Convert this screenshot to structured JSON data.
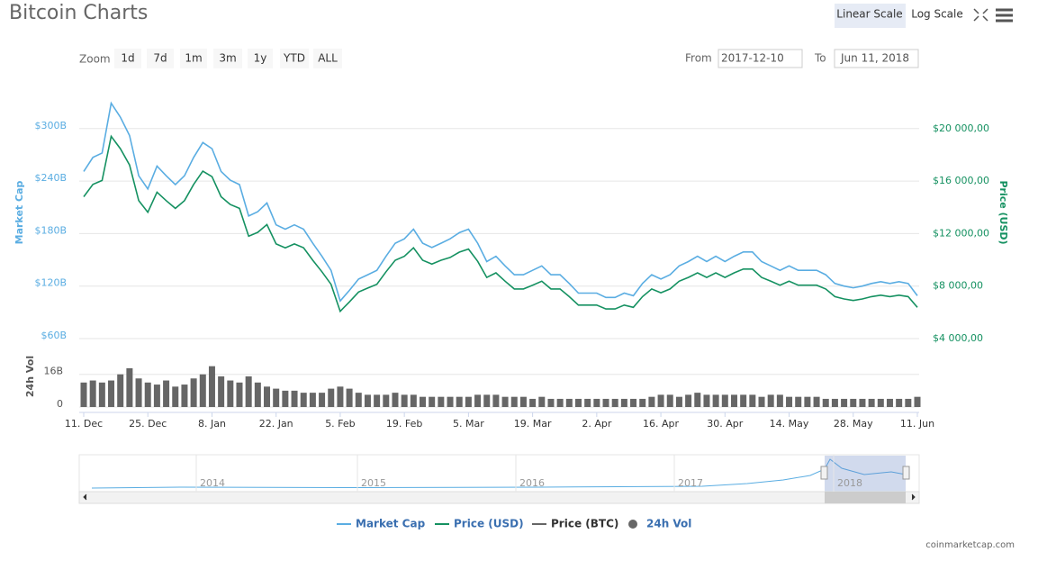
{
  "ui": {
    "title": "Bitcoin Charts",
    "scale_buttons": [
      "Linear Scale",
      "Log Scale"
    ],
    "zoom_label": "Zoom",
    "zoom_buttons": [
      "1d",
      "7d",
      "1m",
      "3m",
      "1y",
      "YTD",
      "ALL"
    ],
    "from_label": "From",
    "from_value": "2017-12-10",
    "to_label": "To",
    "to_value": "Jun 11, 2018",
    "navigator_years": [
      "2014",
      "2015",
      "2016",
      "2017",
      "2018"
    ],
    "legend": [
      {
        "name": "Market Cap",
        "color": "#5aade2"
      },
      {
        "name": "Price (USD)",
        "color": "#159161"
      },
      {
        "name": "Price (BTC)",
        "color": "#666666"
      },
      {
        "name": "24h Vol",
        "color": "#666666"
      }
    ],
    "credit": "coinmarketcap.com"
  },
  "chart_data": [
    {
      "type": "line",
      "ylabel": "Market Cap",
      "y2label": "Price (USD)",
      "categories": [
        "11. Dec",
        null,
        null,
        null,
        null,
        null,
        null,
        "25. Dec",
        null,
        null,
        null,
        null,
        null,
        null,
        "8. Jan",
        null,
        null,
        null,
        null,
        null,
        null,
        "22. Jan",
        null,
        null,
        null,
        null,
        null,
        null,
        "5. Feb",
        null,
        null,
        null,
        null,
        null,
        null,
        "19. Feb",
        null,
        null,
        null,
        null,
        null,
        null,
        "5. Mar",
        null,
        null,
        null,
        null,
        null,
        null,
        "19. Mar",
        null,
        null,
        null,
        null,
        null,
        null,
        "2. Apr",
        null,
        null,
        null,
        null,
        null,
        null,
        "16. Apr",
        null,
        null,
        null,
        null,
        null,
        null,
        "30. Apr",
        null,
        null,
        null,
        null,
        null,
        null,
        "14. May",
        null,
        null,
        null,
        null,
        null,
        null,
        "28. May",
        null,
        null,
        null,
        null,
        null,
        null,
        "11. Jun"
      ],
      "series": [
        {
          "name": "Market Cap",
          "color": "#5aade2",
          "axis": "y",
          "values": [
            251,
            267,
            272,
            329,
            313,
            292,
            246,
            231,
            257,
            246,
            236,
            246,
            267,
            284,
            277,
            251,
            241,
            236,
            200,
            205,
            215,
            190,
            185,
            190,
            185,
            169,
            154,
            138,
            103,
            115,
            128,
            133,
            138,
            154,
            169,
            174,
            185,
            169,
            164,
            169,
            174,
            181,
            185,
            169,
            148,
            154,
            143,
            133,
            133,
            138,
            143,
            133,
            133,
            123,
            112,
            112,
            112,
            107,
            107,
            112,
            109,
            123,
            133,
            128,
            133,
            143,
            148,
            154,
            148,
            154,
            148,
            154,
            159,
            159,
            148,
            143,
            138,
            143,
            138,
            138,
            138,
            133,
            123,
            120,
            118,
            120,
            123,
            125,
            123,
            125,
            123,
            109
          ]
        },
        {
          "name": "Price (USD)",
          "color": "#159161",
          "axis": "y2",
          "values": [
            14810,
            15750,
            16050,
            19410,
            18470,
            17230,
            14510,
            13630,
            15160,
            14510,
            13920,
            14510,
            15750,
            16760,
            16340,
            14810,
            14220,
            13920,
            11800,
            12100,
            12690,
            11210,
            10920,
            11210,
            10920,
            9970,
            9090,
            8140,
            6080,
            6790,
            7550,
            7850,
            8140,
            9090,
            9970,
            10270,
            10920,
            9970,
            9680,
            9970,
            10180,
            10590,
            10820,
            9890,
            8660,
            9010,
            8370,
            7780,
            7780,
            8070,
            8370,
            7780,
            7780,
            7200,
            6550,
            6550,
            6550,
            6260,
            6260,
            6550,
            6380,
            7200,
            7780,
            7490,
            7780,
            8370,
            8660,
            9010,
            8660,
            9010,
            8660,
            9010,
            9300,
            9300,
            8660,
            8370,
            8070,
            8370,
            8070,
            8070,
            8070,
            7780,
            7200,
            7020,
            6900,
            7020,
            7200,
            7310,
            7200,
            7310,
            7200,
            6380
          ]
        }
      ],
      "ylim": [
        60,
        344
      ],
      "yticks": [
        {
          "value": 60,
          "label": "$60B"
        },
        {
          "value": 120,
          "label": "$120B"
        },
        {
          "value": 180,
          "label": "$180B"
        },
        {
          "value": 240,
          "label": "$240B"
        },
        {
          "value": 300,
          "label": "$300B"
        }
      ],
      "y2lim": [
        4000,
        22940
      ],
      "y2ticks": [
        {
          "value": 4000,
          "label": "$4 000,00"
        },
        {
          "value": 8000,
          "label": "$8 000,00"
        },
        {
          "value": 12000,
          "label": "$12 000,00"
        },
        {
          "value": 16000,
          "label": "$16 000,00"
        },
        {
          "value": 20000,
          "label": "$20 000,00"
        }
      ],
      "grid": true
    },
    {
      "type": "bar",
      "ylabel": "24h Vol",
      "color": "#666666",
      "ylim": [
        0,
        30
      ],
      "yticks": [
        0,
        {
          "value": 16,
          "label": "16B"
        }
      ],
      "grid": true,
      "values": [
        12,
        13,
        12,
        13,
        16,
        19,
        14,
        12,
        11,
        13,
        10,
        11,
        14,
        16,
        20,
        15,
        13,
        12,
        15,
        12,
        10,
        9,
        8,
        8,
        7,
        7,
        7,
        9,
        10,
        9,
        7,
        6,
        6,
        6,
        7,
        6,
        6,
        5,
        5,
        5,
        5,
        5,
        5,
        6,
        6,
        6,
        5,
        5,
        5,
        4,
        5,
        4,
        4,
        4,
        4,
        4,
        4,
        4,
        4,
        4,
        4,
        4,
        5,
        6,
        6,
        5,
        6,
        7,
        6,
        6,
        6,
        6,
        6,
        6,
        5,
        6,
        6,
        5,
        5,
        5,
        5,
        4,
        4,
        4,
        4,
        4,
        4,
        4,
        4,
        4,
        4,
        5
      ]
    }
  ]
}
